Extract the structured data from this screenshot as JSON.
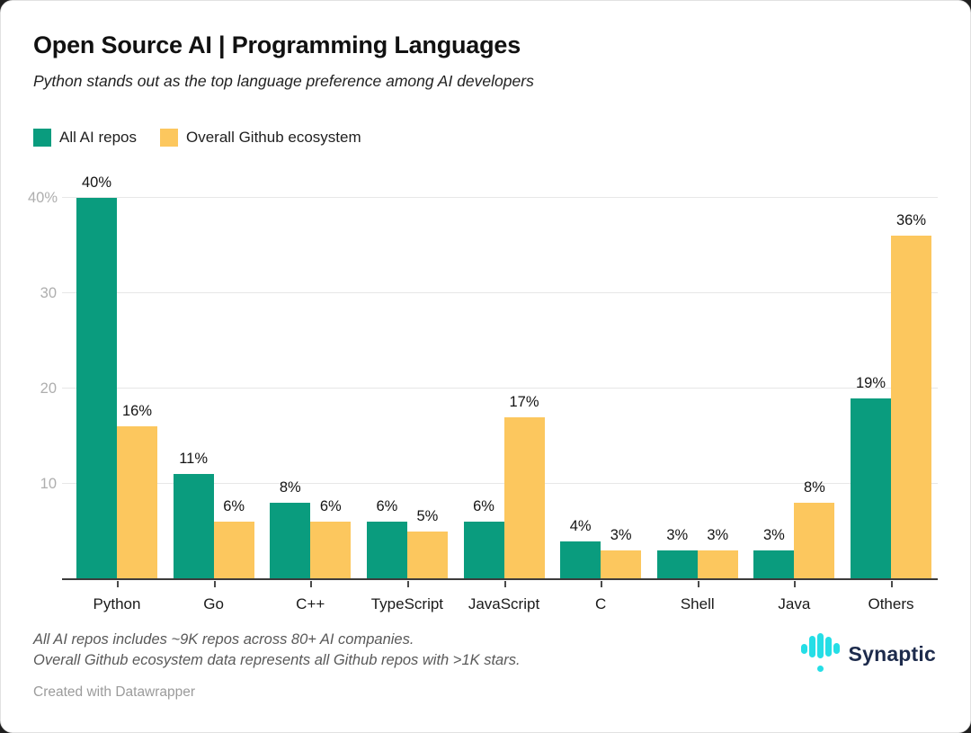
{
  "header": {
    "title": "Open Source AI | Programming Languages",
    "subtitle": "Python stands out as the top language preference among AI developers"
  },
  "legend": [
    {
      "label": "All AI repos",
      "color": "#0a9c7e"
    },
    {
      "label": "Overall Github ecosystem",
      "color": "#fcc75e"
    }
  ],
  "chart_data": {
    "type": "bar",
    "title": "Open Source AI | Programming Languages",
    "subtitle": "Python stands out as the top language preference among AI developers",
    "categories": [
      "Python",
      "Go",
      "C++",
      "TypeScript",
      "JavaScript",
      "C",
      "Shell",
      "Java",
      "Others"
    ],
    "series": [
      {
        "name": "All AI repos",
        "color": "#0a9c7e",
        "values": [
          40,
          11,
          8,
          6,
          6,
          4,
          3,
          3,
          19
        ]
      },
      {
        "name": "Overall Github ecosystem",
        "color": "#fcc75e",
        "values": [
          16,
          6,
          6,
          5,
          17,
          3,
          3,
          8,
          36
        ]
      }
    ],
    "value_suffix": "%",
    "xlabel": "",
    "ylabel": "",
    "ylim": [
      0,
      40
    ],
    "yticks": [
      {
        "value": 10,
        "label": "10"
      },
      {
        "value": 20,
        "label": "20"
      },
      {
        "value": 30,
        "label": "30"
      },
      {
        "value": 40,
        "label": "40%"
      }
    ],
    "grid": true,
    "legend_position": "top-left"
  },
  "footer": {
    "notes": [
      "All AI repos includes ~9K repos across 80+ AI companies.",
      "Overall Github ecosystem data represents all Github repos with >1K stars."
    ],
    "attribution": "Created with Datawrapper",
    "brand": {
      "name": "Synaptic",
      "icon": "waveform-bars-icon",
      "icon_color": "#25dee6",
      "text_color": "#1d2b4c"
    }
  }
}
